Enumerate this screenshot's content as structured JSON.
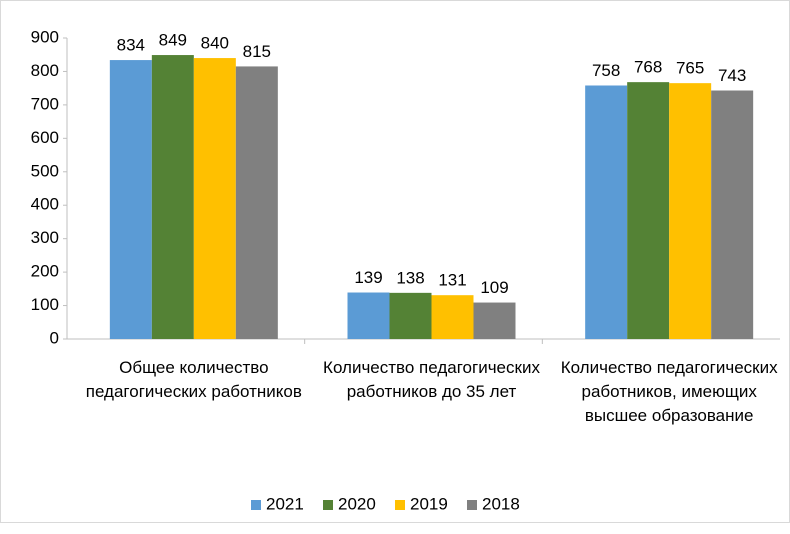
{
  "chart_data": {
    "type": "bar",
    "categories": [
      "Общее количество педагогических работников",
      "Количество педагогических работников до 35 лет",
      "Количество педагогических работников, имеющих высшее образование"
    ],
    "series": [
      {
        "name": "2021",
        "color": "#5b9bd5",
        "values": [
          834,
          139,
          758
        ]
      },
      {
        "name": "2020",
        "color": "#548235",
        "values": [
          849,
          138,
          768
        ]
      },
      {
        "name": "2019",
        "color": "#ffc000",
        "values": [
          840,
          131,
          765
        ]
      },
      {
        "name": "2018",
        "color": "#808080",
        "values": [
          815,
          109,
          743
        ]
      }
    ],
    "ylim": [
      0,
      900
    ],
    "yticks": [
      0,
      100,
      200,
      300,
      400,
      500,
      600,
      700,
      800,
      900
    ],
    "grid": false,
    "legend": "bottom"
  }
}
